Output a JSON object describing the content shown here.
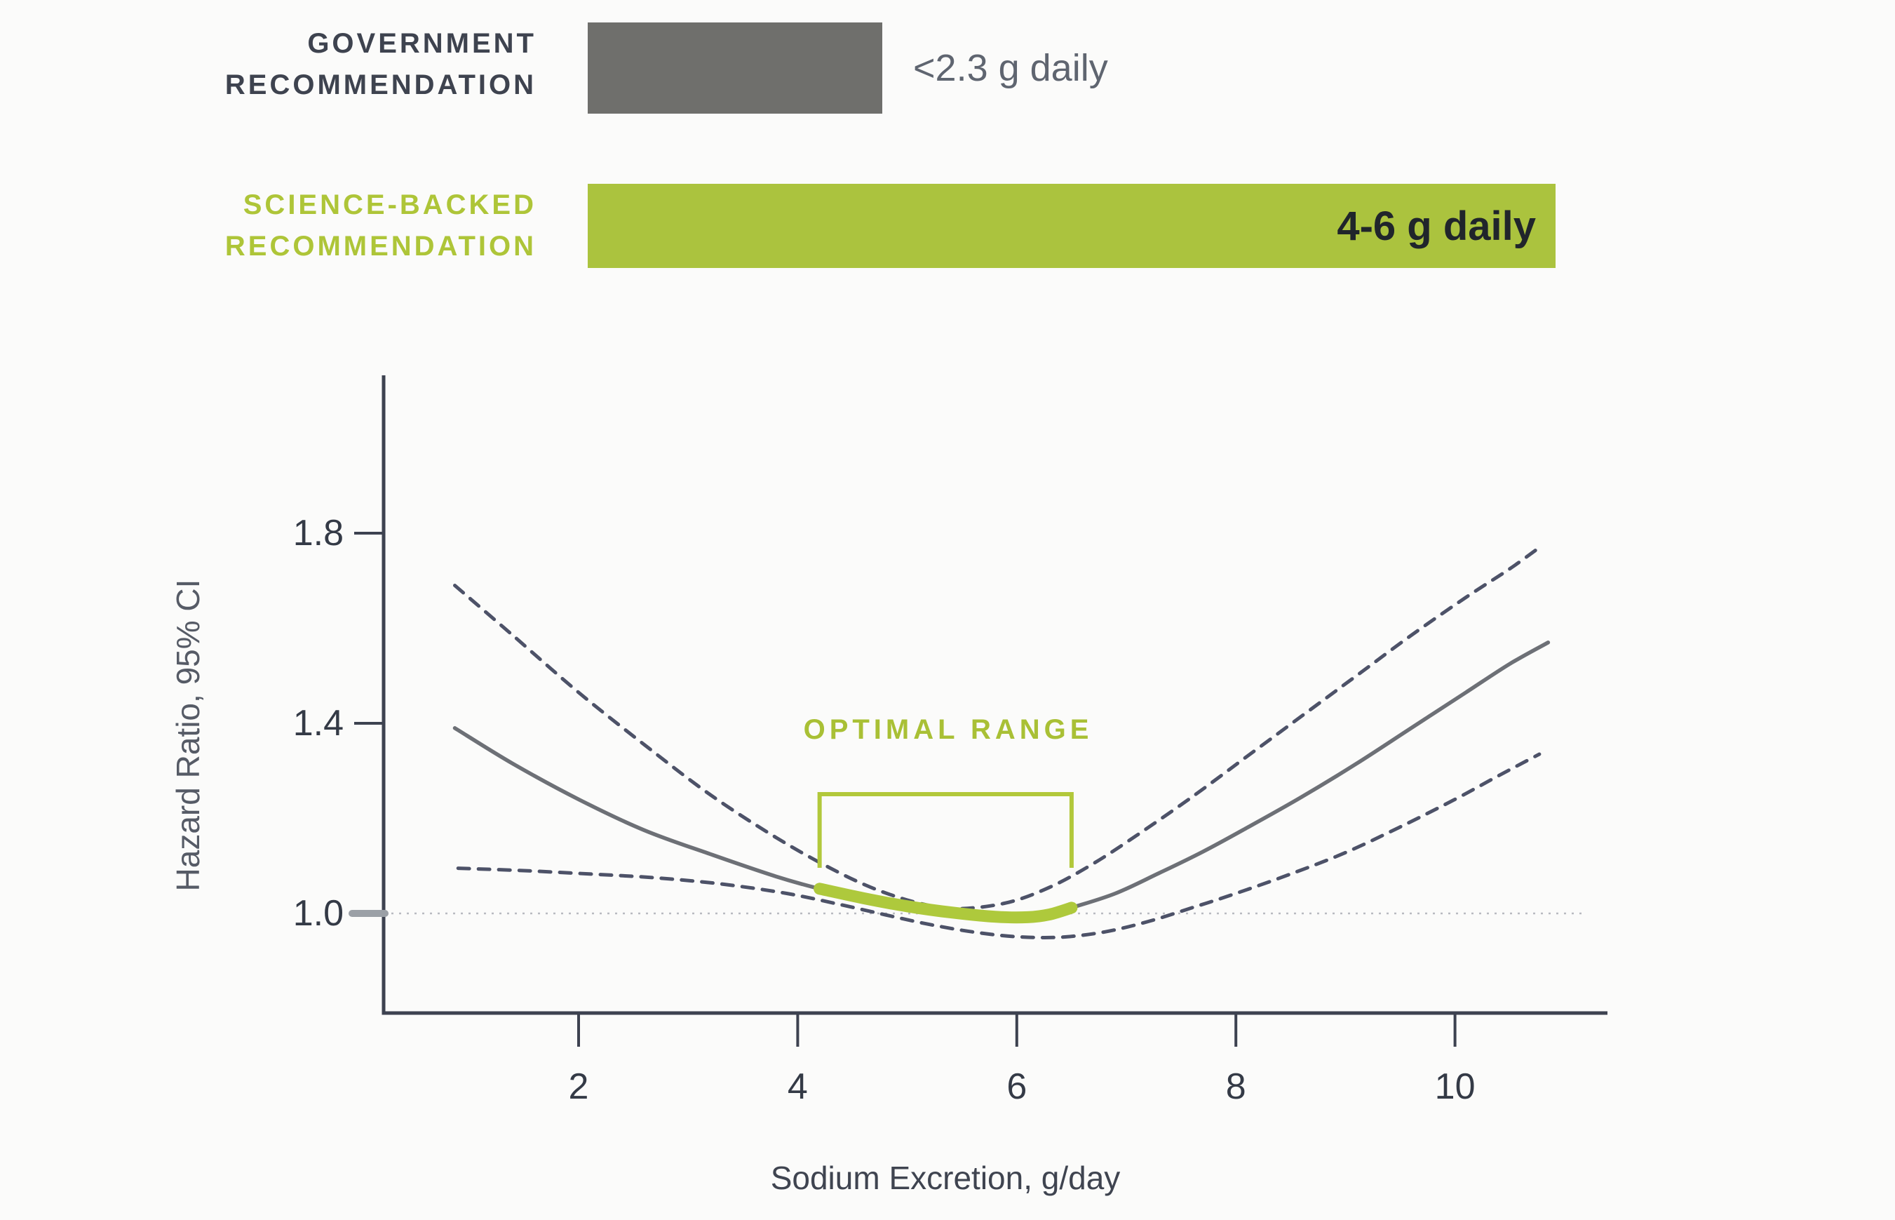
{
  "colors": {
    "accent_green": "#abc33e",
    "curve_green": "#aec93c",
    "bar_gray": "#6f6f6c",
    "axis_dark": "#3d4250",
    "curve_gray": "#6d7076",
    "ci_dashed": "#4d5268",
    "reference_dotted": "#b8bac0"
  },
  "legend": {
    "government": {
      "label": [
        "GOVERNMENT",
        "RECOMMENDATION"
      ],
      "value": "<2.3 g daily"
    },
    "science": {
      "label": [
        "SCIENCE-BACKED",
        "RECOMMENDATION"
      ],
      "value": "4-6 g daily"
    }
  },
  "chart_data": {
    "type": "line",
    "xlabel": "Sodium Excretion, g/day",
    "ylabel": "Hazard Ratio, 95% CI",
    "x_ticks": [
      2,
      4,
      6,
      8,
      10
    ],
    "y_ticks": [
      1.8,
      1.4,
      1.0
    ],
    "xlim": [
      0.2,
      11.4
    ],
    "ylim": [
      0.78,
      2.13
    ],
    "grid": false,
    "reference_line_y": 1.0,
    "annotation": {
      "label": "OPTIMAL RANGE",
      "x_start": 4.2,
      "x_end": 6.5
    },
    "series": [
      {
        "name": "hazard-ratio",
        "style": "solid",
        "points": [
          [
            0.87,
            1.39
          ],
          [
            1.4,
            1.315
          ],
          [
            2.0,
            1.24
          ],
          [
            2.6,
            1.175
          ],
          [
            3.2,
            1.125
          ],
          [
            3.8,
            1.078
          ],
          [
            4.2,
            1.052
          ],
          [
            4.6,
            1.032
          ],
          [
            5.0,
            1.015
          ],
          [
            5.4,
            1.002
          ],
          [
            5.8,
            0.993
          ],
          [
            6.1,
            0.992
          ],
          [
            6.3,
            0.998
          ],
          [
            6.5,
            1.012
          ],
          [
            6.9,
            1.042
          ],
          [
            7.3,
            1.085
          ],
          [
            7.7,
            1.13
          ],
          [
            8.1,
            1.18
          ],
          [
            8.6,
            1.245
          ],
          [
            9.1,
            1.315
          ],
          [
            9.6,
            1.39
          ],
          [
            10.1,
            1.465
          ],
          [
            10.5,
            1.525
          ],
          [
            10.85,
            1.57
          ]
        ]
      },
      {
        "name": "upper-95ci",
        "style": "dashed",
        "points": [
          [
            0.87,
            1.69
          ],
          [
            1.4,
            1.585
          ],
          [
            2.0,
            1.465
          ],
          [
            2.6,
            1.355
          ],
          [
            3.2,
            1.25
          ],
          [
            3.8,
            1.16
          ],
          [
            4.3,
            1.095
          ],
          [
            4.7,
            1.052
          ],
          [
            5.1,
            1.022
          ],
          [
            5.45,
            1.01
          ],
          [
            5.9,
            1.022
          ],
          [
            6.3,
            1.055
          ],
          [
            6.7,
            1.105
          ],
          [
            7.1,
            1.165
          ],
          [
            7.6,
            1.245
          ],
          [
            8.1,
            1.33
          ],
          [
            8.6,
            1.415
          ],
          [
            9.1,
            1.5
          ],
          [
            9.6,
            1.585
          ],
          [
            10.1,
            1.665
          ],
          [
            10.5,
            1.725
          ],
          [
            10.8,
            1.775
          ]
        ]
      },
      {
        "name": "lower-95ci",
        "style": "dashed",
        "points": [
          [
            0.9,
            1.095
          ],
          [
            1.5,
            1.09
          ],
          [
            2.1,
            1.083
          ],
          [
            2.7,
            1.075
          ],
          [
            3.3,
            1.062
          ],
          [
            3.9,
            1.042
          ],
          [
            4.4,
            1.018
          ],
          [
            4.8,
            0.997
          ],
          [
            5.2,
            0.977
          ],
          [
            5.6,
            0.961
          ],
          [
            6.0,
            0.951
          ],
          [
            6.4,
            0.95
          ],
          [
            6.8,
            0.961
          ],
          [
            7.2,
            0.983
          ],
          [
            7.6,
            1.012
          ],
          [
            8.0,
            1.042
          ],
          [
            8.5,
            1.083
          ],
          [
            9.0,
            1.128
          ],
          [
            9.5,
            1.182
          ],
          [
            10.0,
            1.24
          ],
          [
            10.4,
            1.29
          ],
          [
            10.77,
            1.335
          ]
        ]
      }
    ]
  }
}
